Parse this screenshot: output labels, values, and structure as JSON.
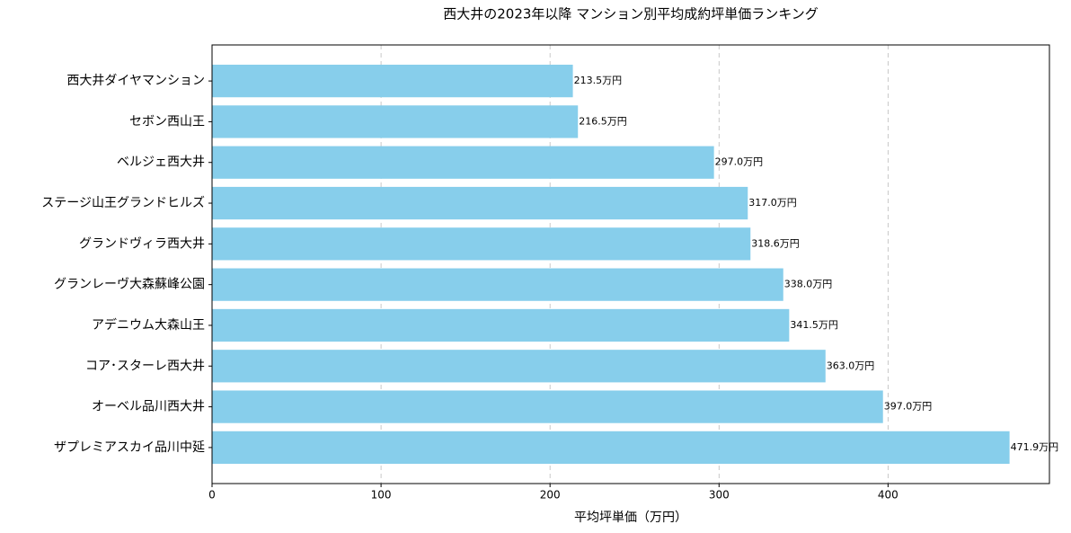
{
  "chart_data": {
    "type": "barh",
    "title": "西大井の2023年以降 マンション別平均成約坪単価ランキング",
    "x_label": "平均坪単価（万円）",
    "categories": [
      "西大井ダイヤマンション",
      "セボン西山王",
      "ベルジェ西大井",
      "ステージ山王グランドヒルズ",
      "グランドヴィラ西大井",
      "グランレーヴ大森蘇峰公園",
      "アデニウム大森山王",
      "コア･スターレ西大井",
      "オーベル品川西大井",
      "ザプレミアスカイ品川中延"
    ],
    "values": [
      213.5,
      216.5,
      297.0,
      317.0,
      318.6,
      338.0,
      341.5,
      363.0,
      397.0,
      471.9
    ],
    "value_labels": [
      "213.5万円",
      "216.5万円",
      "297.0万円",
      "317.0万円",
      "318.6万円",
      "338.0万円",
      "341.5万円",
      "363.0万円",
      "397.0万円",
      "471.9万円"
    ],
    "color": "#87ceeb",
    "xlim": [
      0,
      495.5
    ],
    "xticks": [
      0,
      100,
      200,
      300,
      400
    ],
    "grid": true
  }
}
